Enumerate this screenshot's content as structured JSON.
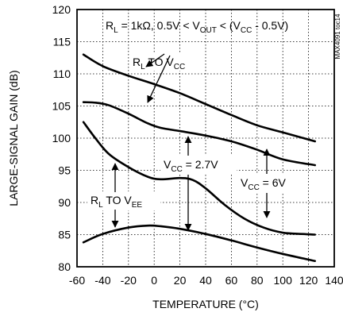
{
  "chart_data": {
    "type": "line",
    "xlabel": "TEMPERATURE (°C)",
    "ylabel": "LARGE-SIGNAL GAIN (dB)",
    "xlim": [
      -60,
      140
    ],
    "ylim": [
      80,
      120
    ],
    "xticks": [
      -60,
      -40,
      -20,
      0,
      20,
      40,
      60,
      80,
      100,
      120,
      140
    ],
    "yticks": [
      80,
      85,
      90,
      95,
      100,
      105,
      110,
      115,
      120
    ],
    "grid": true,
    "condition": {
      "prefix": "R",
      "prefix_sub": "L",
      "mid": " = 1kΩ, 0.5V < V",
      "mid_sub": "OUT",
      "end1": " < (V",
      "end1_sub": "CC",
      "end2": " - 0.5V)"
    },
    "part_number": "MAX4091 toc14",
    "annotations": {
      "rl_to_vcc": {
        "main": "R",
        "sub1": "L",
        "mid": " TO V",
        "sub2": "CC"
      },
      "rl_to_vee": {
        "main": "R",
        "sub1": "L",
        "mid": " TO V",
        "sub2": "EE"
      },
      "vcc_27": {
        "main": "V",
        "sub": "CC",
        "rest": " = 2.7V"
      },
      "vcc_6": {
        "main": "V",
        "sub": "CC",
        "rest": " = 6V"
      }
    },
    "series": [
      {
        "x": [
          -55,
          -40,
          -20,
          0,
          20,
          40,
          60,
          80,
          100,
          125
        ],
        "y": [
          113,
          111.2,
          109.7,
          108.4,
          107,
          105.3,
          103.6,
          102,
          100.9,
          99.5
        ]
      },
      {
        "x": [
          -55,
          -45,
          -35,
          -20,
          -5,
          5,
          20,
          40,
          60,
          80,
          100,
          125
        ],
        "y": [
          105.6,
          105.5,
          105.1,
          103.8,
          102.3,
          101.6,
          101.1,
          100.4,
          99.5,
          98.2,
          96.7,
          95.8
        ]
      },
      {
        "x": [
          -55,
          -45,
          -35,
          -20,
          -5,
          5,
          20,
          30,
          40,
          55,
          70,
          85,
          100,
          115,
          125
        ],
        "y": [
          102.5,
          99.8,
          97.5,
          95.5,
          94,
          93.6,
          93.8,
          93.5,
          92.2,
          89.6,
          87.5,
          86.1,
          85.3,
          85.1,
          85
        ]
      },
      {
        "x": [
          -55,
          -40,
          -20,
          -5,
          5,
          20,
          40,
          60,
          80,
          100,
          125
        ],
        "y": [
          83.8,
          85.1,
          86.1,
          86.4,
          86.3,
          85.9,
          85.1,
          84.1,
          83,
          82,
          80.9
        ]
      }
    ]
  }
}
